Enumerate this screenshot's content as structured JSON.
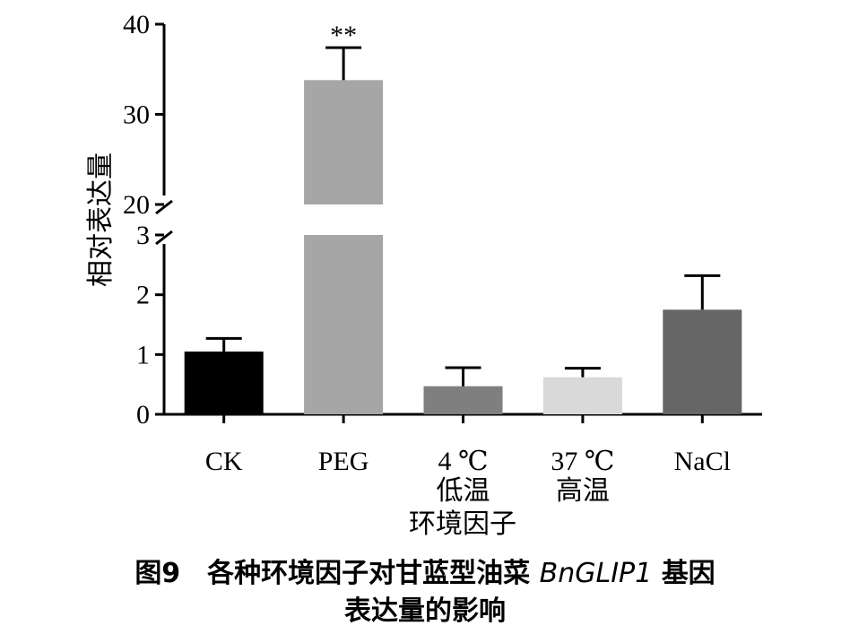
{
  "chart_data": {
    "type": "bar",
    "categories": [
      "CK",
      "PEG",
      "4 ℃\n低温",
      "37 ℃\n高温",
      "NaCl"
    ],
    "values": [
      1.05,
      33.8,
      0.47,
      0.62,
      1.75
    ],
    "errors": [
      0.22,
      3.6,
      0.31,
      0.15,
      0.57
    ],
    "colors": [
      "#000000",
      "#a6a6a6",
      "#7f7f7f",
      "#d9d9d9",
      "#666666"
    ],
    "significance": [
      "",
      "**",
      "",
      "",
      ""
    ],
    "ylabel": "相对表达量",
    "xlabel": "环境因子",
    "y_axis_broken": true,
    "y_lower_range": [
      0,
      3
    ],
    "y_upper_range": [
      20,
      40
    ],
    "y_lower_ticks": [
      "0",
      "1",
      "2",
      "3"
    ],
    "y_upper_ticks": [
      "20",
      "30",
      "40"
    ],
    "y_lower_tick_values": [
      0,
      1,
      2,
      3
    ],
    "y_upper_tick_values": [
      20,
      30,
      40
    ],
    "grid": false,
    "legend": "none"
  },
  "caption": {
    "prefix": "图9　各种环境因子对甘蓝型油菜",
    "gene": "BnGLIP1",
    "suffix": "基因",
    "line2": "表达量的影响"
  }
}
